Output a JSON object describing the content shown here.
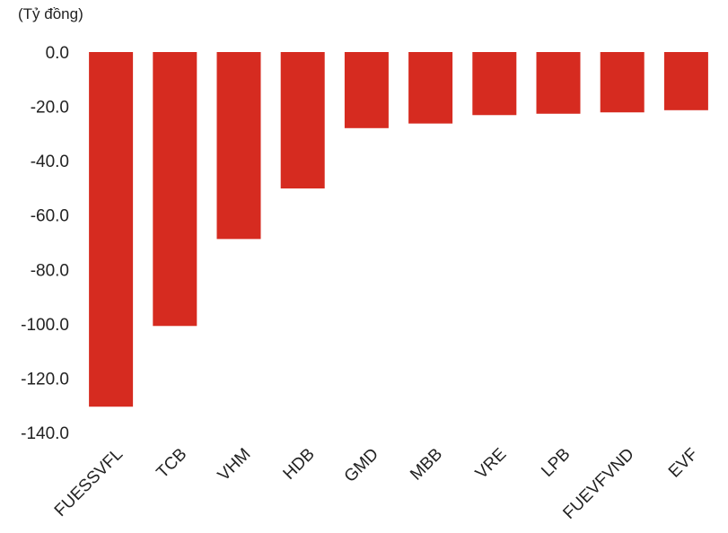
{
  "chart_data": {
    "type": "bar",
    "unit_label": "(Tỷ đồng)",
    "categories": [
      "FUESSVFL",
      "TCB",
      "VHM",
      "HDB",
      "GMD",
      "MBB",
      "VRE",
      "LPB",
      "FUEVFVND",
      "EVF"
    ],
    "values": [
      -130.5,
      -100.8,
      -68.8,
      -50.2,
      -28.0,
      -26.3,
      -23.2,
      -22.7,
      -22.2,
      -21.4
    ],
    "ylim": [
      -140,
      0
    ],
    "y_ticks": [
      "0.0",
      "-20.0",
      "-40.0",
      "-60.0",
      "-80.0",
      "-100.0",
      "-120.0",
      "-140.0"
    ],
    "y_tick_values": [
      0,
      -20,
      -40,
      -60,
      -80,
      -100,
      -120,
      -140
    ],
    "grid": false,
    "legend": "none",
    "bar_color": "#d62b20"
  }
}
